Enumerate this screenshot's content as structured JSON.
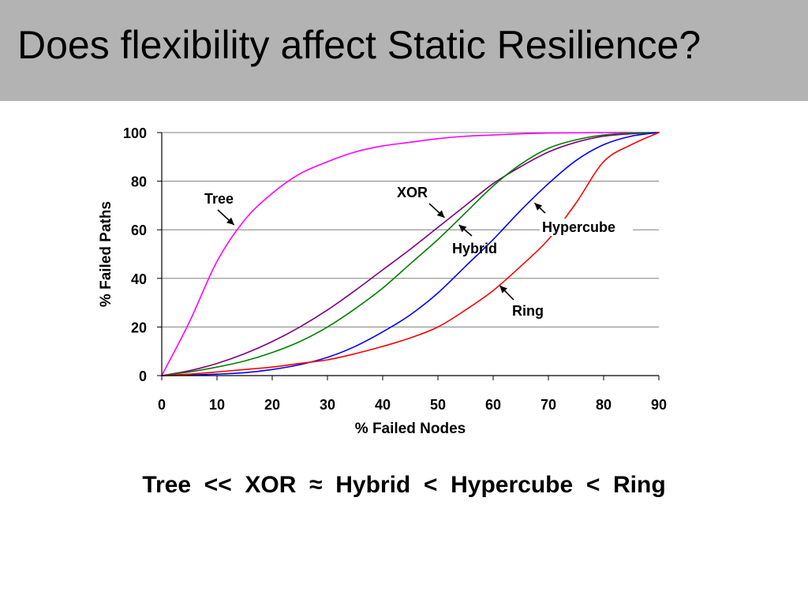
{
  "slide": {
    "title": "Does flexibility affect Static Resilience?",
    "footer": "Tree  <<  XOR  ≈  Hybrid  <  Hypercube  <  Ring"
  },
  "colors": {
    "title_bar": "#b3b3b3",
    "gridline": "#808080"
  },
  "chart_data": {
    "type": "line",
    "xlabel": "% Failed Nodes",
    "ylabel": "% Failed Paths",
    "xlim": [
      0,
      90
    ],
    "ylim": [
      0,
      100
    ],
    "xticks": [
      0,
      10,
      20,
      30,
      40,
      50,
      60,
      70,
      80,
      90
    ],
    "yticks": [
      0,
      20,
      40,
      60,
      80,
      100
    ],
    "grid": "horizontal",
    "x": [
      0,
      5,
      10,
      15,
      20,
      25,
      30,
      35,
      40,
      45,
      50,
      55,
      60,
      65,
      70,
      75,
      80,
      85,
      90
    ],
    "series": [
      {
        "name": "Tree",
        "color": "#ff00ff",
        "values": [
          0,
          22,
          47,
          64,
          75,
          83,
          88,
          92,
          94.5,
          96,
          97.5,
          98.5,
          99,
          99.5,
          99.8,
          99.9,
          100,
          100,
          100
        ]
      },
      {
        "name": "XOR",
        "color": "#800080",
        "values": [
          0,
          2,
          5,
          9,
          14,
          20,
          27,
          35,
          43.5,
          52,
          61,
          70,
          79,
          86,
          92,
          96,
          98.5,
          99.5,
          100
        ]
      },
      {
        "name": "Hybrid",
        "color": "#008000",
        "values": [
          0,
          1.5,
          3.5,
          6,
          9.5,
          14,
          20,
          27.5,
          36,
          46,
          56,
          67,
          78,
          87,
          93.5,
          97,
          99,
          99.8,
          100
        ]
      },
      {
        "name": "Hypercube",
        "color": "#0000ff",
        "values": [
          0,
          0.2,
          0.6,
          1.2,
          2.5,
          4.5,
          7.5,
          12,
          18,
          25,
          34,
          45,
          56,
          68,
          79,
          88.5,
          95,
          98.5,
          100
        ]
      },
      {
        "name": "Ring",
        "color": "#ff0000",
        "values": [
          0,
          0.6,
          1.5,
          2.5,
          3.5,
          5,
          6.5,
          9,
          12,
          15.5,
          20,
          27,
          35,
          45,
          56,
          71,
          88,
          95,
          100
        ]
      }
    ],
    "annotations": [
      {
        "series": "Tree",
        "text": "Tree",
        "arrow_to_x": 13.1,
        "arrow_to_y": 62
      },
      {
        "series": "XOR",
        "text": "XOR",
        "arrow_to_x": 51.2,
        "arrow_to_y": 65
      },
      {
        "series": "Hybrid",
        "text": "Hybrid",
        "arrow_to_x": 53.8,
        "arrow_to_y": 62
      },
      {
        "series": "Hypercube",
        "text": "Hypercube",
        "arrow_to_x": 67.5,
        "arrow_to_y": 71
      },
      {
        "series": "Ring",
        "text": "Ring",
        "arrow_to_x": 61.2,
        "arrow_to_y": 37
      }
    ]
  }
}
